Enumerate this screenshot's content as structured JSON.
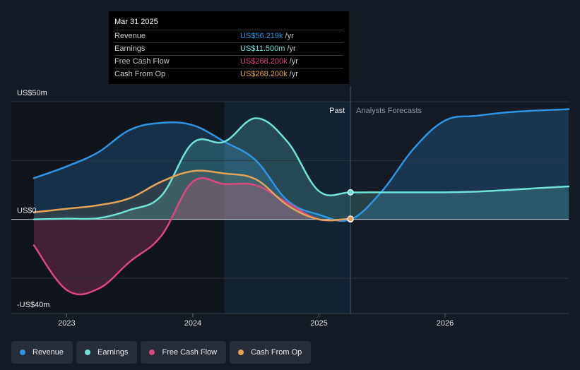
{
  "tooltip": {
    "date": "Mar 31 2025",
    "rows": [
      {
        "label": "Revenue",
        "value": "US$56.219k",
        "unit": "/yr",
        "color": "#2f95e3"
      },
      {
        "label": "Earnings",
        "value": "US$11.500m",
        "unit": "/yr",
        "color": "#6ee3d6"
      },
      {
        "label": "Free Cash Flow",
        "value": "US$268.200k",
        "unit": "/yr",
        "color": "#d9487f"
      },
      {
        "label": "Cash From Op",
        "value": "US$268.200k",
        "unit": "/yr",
        "color": "#e3a35a"
      }
    ]
  },
  "legend": [
    {
      "label": "Revenue",
      "color": "#2f95e3"
    },
    {
      "label": "Earnings",
      "color": "#6ee3d6"
    },
    {
      "label": "Free Cash Flow",
      "color": "#d9487f"
    },
    {
      "label": "Cash From Op",
      "color": "#e3a35a"
    }
  ],
  "chart_data": {
    "type": "area",
    "y_unit": "US$ millions",
    "ylim": [
      -40,
      50
    ],
    "y_tick_labels": [
      "US$50m",
      "US$0",
      "-US$40m"
    ],
    "y_tick_values": [
      50,
      0,
      -40
    ],
    "xlim": [
      2022.74,
      2026.98
    ],
    "x_ticks": [
      2023,
      2024,
      2025,
      2026
    ],
    "x_tick_labels": [
      "2023",
      "2024",
      "2025",
      "2026"
    ],
    "past_label": "Past",
    "forecast_label": "Analysts Forecasts",
    "divider_x": 2025.25,
    "highlight_start": 2024.25,
    "series": [
      {
        "name": "Revenue",
        "color": "#2f95e3",
        "x": [
          2022.74,
          2023.0,
          2023.25,
          2023.5,
          2023.75,
          2024.0,
          2024.25,
          2024.5,
          2024.75,
          2025.0,
          2025.25,
          2025.5,
          2025.75,
          2026.0,
          2026.25,
          2026.5,
          2026.75,
          2026.98
        ],
        "y": [
          17.5,
          22.5,
          28.5,
          38,
          41,
          40,
          33,
          25,
          8,
          2,
          0,
          12,
          30,
          42,
          44,
          45.5,
          46.3,
          46.8
        ]
      },
      {
        "name": "Earnings",
        "color": "#6ee3d6",
        "x": [
          2022.74,
          2023.0,
          2023.25,
          2023.5,
          2023.75,
          2024.0,
          2024.25,
          2024.5,
          2024.75,
          2025.0,
          2025.25,
          2025.5,
          2025.75,
          2026.0,
          2026.25,
          2026.5,
          2026.75,
          2026.98
        ],
        "y": [
          0,
          0.3,
          0.5,
          4,
          10,
          32.5,
          33,
          43,
          33,
          12,
          11.5,
          11.5,
          11.5,
          11.5,
          11.8,
          12.5,
          13.3,
          14
        ]
      },
      {
        "name": "Free Cash Flow",
        "color": "#d9487f",
        "x": [
          2022.74,
          2023.0,
          2023.25,
          2023.5,
          2023.75,
          2024.0,
          2024.25,
          2024.5,
          2024.75,
          2025.0,
          2025.25
        ],
        "y": [
          -11,
          -30,
          -29.5,
          -18,
          -7,
          16,
          15,
          14.5,
          7,
          0,
          0.27
        ]
      },
      {
        "name": "Cash From Op",
        "color": "#e3a35a",
        "x": [
          2022.74,
          2023.0,
          2023.25,
          2023.5,
          2023.75,
          2024.0,
          2024.25,
          2024.5,
          2024.75,
          2025.0,
          2025.25
        ],
        "y": [
          3,
          4.5,
          6,
          9,
          16,
          20.5,
          19.5,
          17,
          6,
          0,
          0.27
        ]
      }
    ]
  }
}
